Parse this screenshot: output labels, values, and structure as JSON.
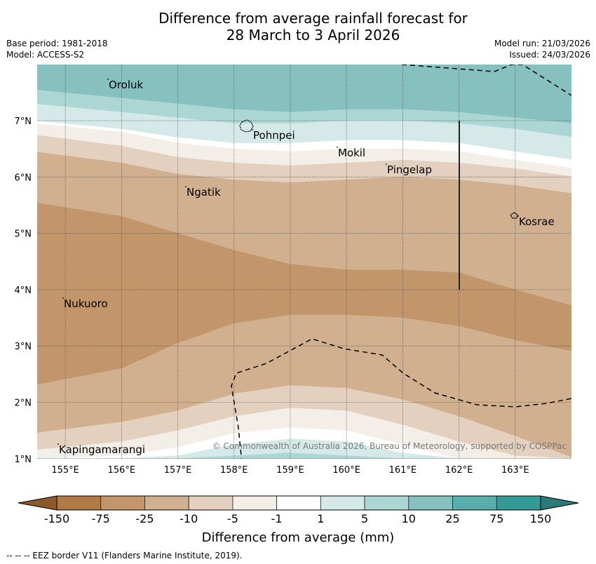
{
  "title": {
    "line1": "Difference from average rainfall forecast for",
    "line2": "28 March to 3 April 2026"
  },
  "meta_left": {
    "base_period": "Base period: 1981-2018",
    "model": "Model: ACCESS-S2"
  },
  "meta_right": {
    "model_run": "Model run: 21/03/2026",
    "issued": "Issued: 24/03/2026"
  },
  "map": {
    "lon_range": [
      154.5,
      164.0
    ],
    "lat_range": [
      1.0,
      8.0
    ],
    "lon_ticks": [
      "155°E",
      "156°E",
      "157°E",
      "158°E",
      "159°E",
      "160°E",
      "161°E",
      "162°E",
      "163°E"
    ],
    "lat_ticks": [
      "1°N",
      "2°N",
      "3°N",
      "4°N",
      "5°N",
      "6°N",
      "7°N"
    ],
    "places": [
      {
        "name": "Oroluk",
        "lon": 155.75,
        "lat": 7.65
      },
      {
        "name": "Pohnpei",
        "lon": 158.25,
        "lat": 6.85
      },
      {
        "name": "Mokil",
        "lon": 160.2,
        "lat": 6.4
      },
      {
        "name": "Pingelap",
        "lon": 160.75,
        "lat": 6.2
      },
      {
        "name": "Ngatik",
        "lon": 157.15,
        "lat": 5.8
      },
      {
        "name": "Kosrae",
        "lon": 162.95,
        "lat": 5.3
      },
      {
        "name": "Nukuoro",
        "lon": 154.97,
        "lat": 3.85
      },
      {
        "name": "Kapingamarangi",
        "lon": 154.85,
        "lat": 1.08
      }
    ],
    "copyright": "© Commonwealth of Australia 2026, Bureau of Meteorology, supported by COSPPac"
  },
  "colorbar": {
    "labels": [
      "-150",
      "-75",
      "-25",
      "-10",
      "-5",
      "-1",
      "1",
      "5",
      "10",
      "25",
      "75",
      "150"
    ],
    "colors": [
      "#8c5a2a",
      "#b07a44",
      "#c2956a",
      "#d1b08f",
      "#e3d0be",
      "#f3eee8",
      "#ffffff",
      "#d5e9e8",
      "#acd6d4",
      "#86c0bf",
      "#5aaeac",
      "#339a98",
      "#2a7a78"
    ],
    "title": "Difference from average (mm)"
  },
  "footnote": "--  --  -- EEZ border V11 (Flanders Marine Institute, 2019).",
  "chart_data": {
    "type": "heatmap",
    "title": "Difference from average rainfall forecast for 28 March to 3 April 2026",
    "xlabel": "Longitude",
    "ylabel": "Latitude",
    "xlim": [
      154.5,
      164.0
    ],
    "ylim": [
      1.0,
      8.0
    ],
    "units": "mm",
    "levels": [
      -150,
      -75,
      -25,
      -10,
      -5,
      -1,
      1,
      5,
      10,
      25,
      75,
      150
    ],
    "band_boundaries_lat": {
      "lons": [
        154.5,
        156.0,
        157.0,
        158.0,
        159.0,
        160.0,
        161.0,
        162.0,
        163.0,
        164.0
      ],
      "25": [
        7.55,
        7.4,
        7.3,
        7.2,
        7.15,
        7.2,
        7.2,
        7.15,
        7.05,
        6.95
      ],
      "10": [
        7.3,
        7.15,
        7.05,
        6.95,
        6.95,
        7.0,
        7.0,
        6.95,
        6.85,
        6.7
      ],
      "5": [
        7.1,
        6.95,
        6.8,
        6.75,
        6.75,
        6.8,
        6.8,
        6.75,
        6.6,
        6.45
      ],
      "1": [
        7.0,
        6.85,
        6.7,
        6.6,
        6.6,
        6.65,
        6.65,
        6.6,
        6.45,
        6.3
      ],
      "-1": [
        6.95,
        6.8,
        6.6,
        6.5,
        6.45,
        6.5,
        6.5,
        6.45,
        6.3,
        6.15
      ],
      "-5": [
        6.75,
        6.55,
        6.35,
        6.25,
        6.2,
        6.25,
        6.3,
        6.25,
        6.15,
        6.0
      ],
      "-10": [
        6.45,
        6.25,
        6.05,
        5.95,
        5.9,
        5.95,
        6.0,
        5.95,
        5.85,
        5.7
      ],
      "-25_top": [
        5.55,
        5.3,
        5.0,
        4.7,
        4.45,
        4.35,
        4.35,
        4.3,
        4.0,
        3.7
      ],
      "-25_bottom": [
        2.3,
        2.6,
        3.05,
        3.4,
        3.55,
        3.55,
        3.5,
        3.35,
        3.1,
        2.9
      ],
      "-10_bottom": [
        1.45,
        1.65,
        1.85,
        2.15,
        2.3,
        2.25,
        2.05,
        1.75,
        1.4,
        1.0
      ],
      "-5_bottom": [
        1.15,
        1.3,
        1.5,
        1.75,
        1.9,
        1.85,
        1.6,
        1.3,
        1.05,
        1.0
      ],
      "-1_bottom": [
        1.0,
        1.05,
        1.2,
        1.45,
        1.55,
        1.5,
        1.25,
        1.0,
        1.0,
        1.0
      ],
      "1_bottom": [
        1.0,
        1.0,
        1.05,
        1.25,
        1.35,
        1.3,
        1.1,
        1.0,
        1.0,
        1.0
      ],
      "5_bottom": [
        1.0,
        1.0,
        1.0,
        1.05,
        1.1,
        1.05,
        1.0,
        1.0,
        1.0,
        1.0
      ]
    }
  }
}
